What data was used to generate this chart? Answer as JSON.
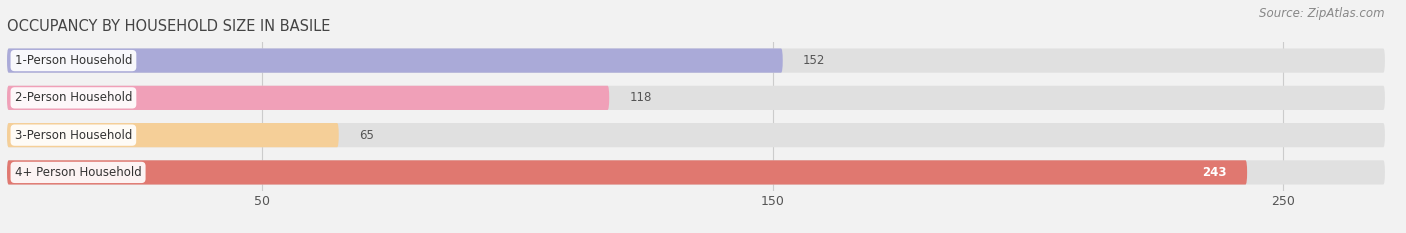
{
  "title": "OCCUPANCY BY HOUSEHOLD SIZE IN BASILE",
  "source": "Source: ZipAtlas.com",
  "categories": [
    "1-Person Household",
    "2-Person Household",
    "3-Person Household",
    "4+ Person Household"
  ],
  "values": [
    152,
    118,
    65,
    243
  ],
  "bar_colors": [
    "#aaaad8",
    "#f0a0b8",
    "#f5cf98",
    "#e07870"
  ],
  "bar_label_colors": [
    "#444444",
    "#444444",
    "#444444",
    "#444444"
  ],
  "value_inside": [
    false,
    false,
    false,
    true
  ],
  "value_color_inside": "#ffffff",
  "value_color_outside": "#555555",
  "xlim": [
    0,
    270
  ],
  "xdata_max": 260,
  "xticks": [
    50,
    150,
    250
  ],
  "background_color": "#f2f2f2",
  "bar_bg_color": "#e0e0e0",
  "title_fontsize": 10.5,
  "source_fontsize": 8.5,
  "label_fontsize": 8.5,
  "value_fontsize": 8.5,
  "tick_fontsize": 9,
  "bar_height": 0.65,
  "bar_gap": 0.35
}
